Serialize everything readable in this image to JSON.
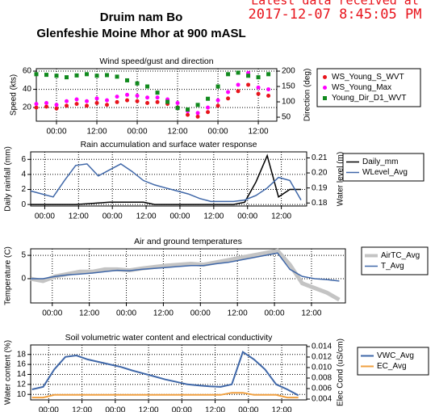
{
  "header": {
    "title": "Druim nam Bo",
    "subtitle": "Glenfeshie Moine Mhor at 900 mASL",
    "latest_label": "Latest data received at",
    "timestamp": "2017-12-07 8:45:05 PM"
  },
  "chart_data": [
    {
      "type": "scatter",
      "title": "Wind speed/gust and direction",
      "ylabel": "Speed (kts)",
      "y2label": "Direction (deg)",
      "legend": "right",
      "grid": true,
      "x": [
        -6,
        -3,
        0,
        3,
        6,
        9,
        12,
        15,
        18,
        21,
        24,
        27,
        30,
        33,
        36,
        39,
        42,
        45,
        48,
        51,
        54,
        57,
        60,
        63
      ],
      "xlim": [
        -6,
        65.5
      ],
      "xticks": [
        {
          "value": 0,
          "label": "00:00"
        },
        {
          "value": 12,
          "label": "12:00"
        },
        {
          "value": 24,
          "label": "00:00"
        },
        {
          "value": 36,
          "label": "12:00"
        },
        {
          "value": 48,
          "label": "00:00"
        },
        {
          "value": 60,
          "label": "12:00"
        }
      ],
      "ylim": [
        5,
        62.7
      ],
      "yticks": [
        20,
        40,
        60
      ],
      "y2lim": [
        37,
        208
      ],
      "y2ticks": [
        50,
        100,
        150,
        200
      ],
      "series": [
        {
          "name": "WS_Young_S_WVT",
          "color": "#e8141c",
          "marker": "circle",
          "values": [
            20,
            21,
            19,
            22,
            24,
            22,
            25,
            23,
            26,
            28,
            27,
            25,
            26,
            24,
            20,
            12,
            10,
            15,
            22,
            30,
            38,
            45,
            35,
            33
          ]
        },
        {
          "name": "WS_Young_Max",
          "color": "#ff00ff",
          "marker": "circle",
          "values": [
            24,
            25,
            23,
            27,
            29,
            27,
            30,
            28,
            32,
            34,
            33,
            31,
            31,
            29,
            25,
            16,
            14,
            20,
            28,
            37,
            45,
            58,
            42,
            40
          ]
        },
        {
          "name": "Young_Dir_D1_WVT",
          "color": "#118a1e",
          "marker": "square",
          "axis": "y2",
          "values": [
            190,
            188,
            185,
            180,
            186,
            190,
            185,
            187,
            182,
            170,
            160,
            150,
            130,
            100,
            80,
            75,
            90,
            110,
            150,
            190,
            195,
            185,
            180,
            190
          ]
        }
      ]
    },
    {
      "type": "line",
      "title": "Rain accumulation and surface water response",
      "ylabel": "Daily rainfall (mm)",
      "y2label": "Water level (m)",
      "legend": "right",
      "grid": true,
      "x": [
        -5,
        -1,
        3,
        7,
        11,
        15,
        19,
        23,
        27,
        31,
        35,
        39,
        43,
        47,
        51,
        55,
        59,
        63,
        67,
        71,
        75,
        79,
        83,
        87,
        91
      ],
      "xlim": [
        -5,
        93
      ],
      "xticks": [
        {
          "value": 0,
          "label": "00:00"
        },
        {
          "value": 12,
          "label": "12:00"
        },
        {
          "value": 24,
          "label": "00:00"
        },
        {
          "value": 36,
          "label": "12:00"
        },
        {
          "value": 48,
          "label": "00:00"
        },
        {
          "value": 60,
          "label": "12:00"
        },
        {
          "value": 72,
          "label": "00:00"
        },
        {
          "value": 84,
          "label": "12:00"
        }
      ],
      "ylim": [
        -0.2,
        7
      ],
      "yticks": [
        0,
        2,
        4,
        6
      ],
      "y2lim": [
        0.178,
        0.214
      ],
      "y2ticks": [
        0.18,
        0.19,
        {
          "value": 0.2,
          "label": "0.20"
        },
        0.21
      ],
      "series": [
        {
          "name": "Daily_mm",
          "color": "#000000",
          "values": [
            0,
            0,
            0,
            0,
            0,
            0.1,
            0.2,
            0.3,
            0.3,
            0.3,
            0.3,
            0,
            0,
            0,
            0,
            0,
            0,
            0,
            0,
            0.3,
            3,
            6.5,
            1,
            2,
            2
          ]
        },
        {
          "name": "WLevel_Avg",
          "color": "#3f67a8",
          "axis": "y2",
          "values": [
            0.188,
            0.186,
            0.184,
            0.195,
            0.205,
            0.206,
            0.198,
            0.202,
            0.206,
            0.201,
            0.195,
            0.192,
            0.19,
            0.188,
            0.186,
            0.183,
            0.181,
            0.181,
            0.181,
            0.182,
            0.185,
            0.19,
            0.197,
            0.195,
            0.182
          ]
        }
      ]
    },
    {
      "type": "line",
      "title": "Air and ground temperatures",
      "ylabel": "Temperature (C)",
      "legend": "right",
      "grid": true,
      "x": [
        -7,
        -3,
        1,
        5,
        9,
        13,
        17,
        21,
        25,
        29,
        33,
        37,
        41,
        45,
        49,
        53,
        57,
        61,
        65,
        69,
        73,
        77,
        81,
        85,
        89,
        93
      ],
      "xlim": [
        -7,
        95
      ],
      "xticks": [
        {
          "value": 0,
          "label": "00:00"
        },
        {
          "value": 12,
          "label": "12:00"
        },
        {
          "value": 24,
          "label": "00:00"
        },
        {
          "value": 36,
          "label": "12:00"
        },
        {
          "value": 48,
          "label": "00:00"
        },
        {
          "value": 60,
          "label": "12:00"
        },
        {
          "value": 72,
          "label": "00:00"
        },
        {
          "value": 84,
          "label": "12:00"
        }
      ],
      "ylim": [
        -5.2,
        6.4
      ],
      "yticks": [
        0,
        5
      ],
      "series": [
        {
          "name": "AirTC_Avg",
          "color": "#c4c4c4",
          "width": 5,
          "values": [
            0,
            -0.5,
            0.5,
            1,
            1.5,
            1.5,
            2,
            2,
            1.8,
            2.2,
            2.5,
            2.8,
            3,
            3.2,
            3,
            3.5,
            4,
            4.5,
            5,
            5.5,
            6,
            3,
            -1,
            -2,
            -3,
            -4.5
          ]
        },
        {
          "name": "T_Avg",
          "color": "#3f67a8",
          "width": 1.5,
          "values": [
            0,
            0,
            0.5,
            0.8,
            1,
            1.2,
            1.5,
            1.8,
            1.7,
            2,
            2.2,
            2.4,
            2.6,
            2.8,
            2.8,
            3.2,
            3.5,
            4,
            4.5,
            5,
            5.5,
            2,
            0.5,
            0,
            -0.2,
            -0.5
          ]
        }
      ]
    },
    {
      "type": "line",
      "title": "Soil volumetric water content and electrical conductivity",
      "ylabel": "Water content (%)",
      "y2label": "Elec Cond (uS/cm)",
      "legend": "right",
      "grid": true,
      "x": [
        -6,
        -2,
        2,
        6,
        10,
        14,
        18,
        22,
        26,
        30,
        34,
        38,
        42,
        46,
        50,
        54,
        58,
        62,
        66,
        70,
        74,
        78,
        82,
        86,
        90
      ],
      "xlim": [
        -6.5,
        93
      ],
      "xticks": [
        {
          "value": 0,
          "label": "00:00"
        },
        {
          "value": 12,
          "label": "12:00"
        },
        {
          "value": 24,
          "label": "00:00"
        },
        {
          "value": 36,
          "label": "12:00"
        },
        {
          "value": 48,
          "label": "00:00"
        },
        {
          "value": 60,
          "label": "12:00"
        },
        {
          "value": 72,
          "label": "00:00"
        },
        {
          "value": 84,
          "label": "12:00"
        }
      ],
      "ylim": [
        8.9,
        19.9
      ],
      "yticks": [
        10,
        12,
        14,
        16,
        18
      ],
      "y2lim": [
        0.00385,
        0.0143
      ],
      "y2ticks": [
        0.004,
        0.006,
        0.008,
        {
          "value": 0.01,
          "label": "0.010"
        },
        0.012,
        0.014
      ],
      "series": [
        {
          "name": "VWC_Avg",
          "color": "#3f67a8",
          "width": 2,
          "values": [
            11,
            11.5,
            15,
            17.5,
            17.8,
            17,
            16.5,
            16,
            15.5,
            14.8,
            14.2,
            13.6,
            13,
            12.5,
            12,
            11.8,
            11.6,
            11.5,
            12,
            18.5,
            17,
            15,
            12,
            11,
            9.8
          ]
        },
        {
          "name": "EC_Avg",
          "color": "#f0a040",
          "axis": "y2",
          "width": 2,
          "values": [
            0.0043,
            0.0043,
            0.0048,
            0.0048,
            0.0048,
            0.0048,
            0.0048,
            0.0048,
            0.0048,
            0.0048,
            0.0048,
            0.0048,
            0.0048,
            0.0048,
            0.0048,
            0.0048,
            0.0048,
            0.0048,
            0.0052,
            0.0052,
            0.0048,
            0.0048,
            0.0048,
            0.0043,
            0.0043
          ]
        }
      ]
    }
  ]
}
